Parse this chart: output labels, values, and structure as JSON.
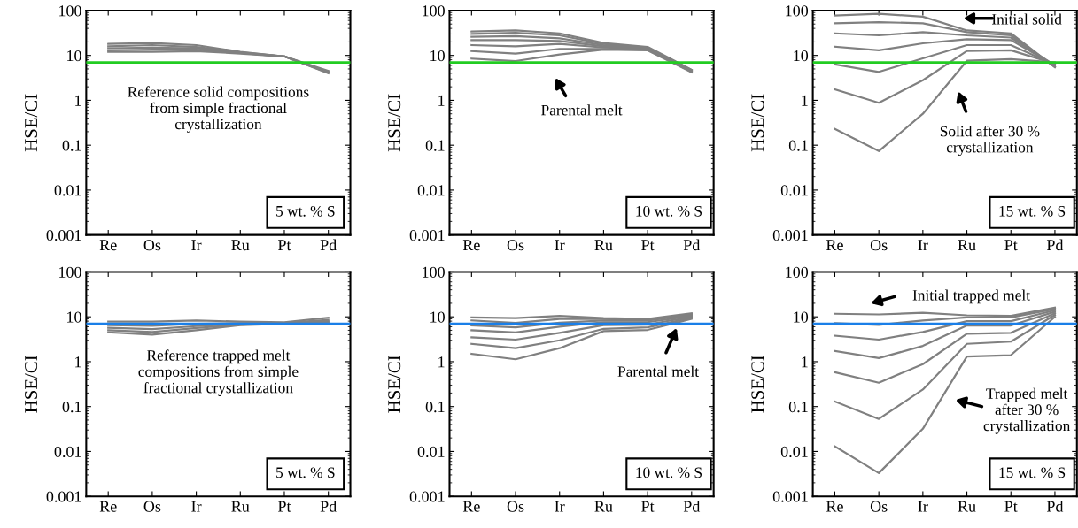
{
  "chart_data": [
    {
      "type": "line",
      "ylabel": "HSE/CI",
      "categories": [
        "Re",
        "Os",
        "Ir",
        "Ru",
        "Pt",
        "Pd"
      ],
      "log": true,
      "ylim": [
        0.001,
        100
      ],
      "yticks": [
        0.001,
        0.01,
        0.1,
        1,
        10,
        100
      ],
      "grid": false,
      "legend": false,
      "series": [
        {
          "color": "#808080",
          "values": [
            18,
            19,
            17,
            12,
            9.5,
            4.5
          ]
        },
        {
          "color": "#808080",
          "values": [
            16,
            17,
            15.5,
            11.8,
            9.5,
            4.3
          ]
        },
        {
          "color": "#808080",
          "values": [
            14.5,
            15,
            14.5,
            11.5,
            9.5,
            4.2
          ]
        },
        {
          "color": "#808080",
          "values": [
            13,
            13.5,
            13.5,
            11.3,
            9.5,
            4.1
          ]
        },
        {
          "color": "#808080",
          "values": [
            12,
            12,
            12.5,
            11,
            9.5,
            4.0
          ]
        }
      ],
      "ref_lines": [
        {
          "axis": "y",
          "value": 7,
          "color": "#22cc22"
        }
      ],
      "annotations": [
        "Reference solid compositions\nfrom simple fractional\ncrystallization",
        "5 wt. % S"
      ]
    },
    {
      "type": "line",
      "ylabel": "HSE/CI",
      "categories": [
        "Re",
        "Os",
        "Ir",
        "Ru",
        "Pt",
        "Pd"
      ],
      "log": true,
      "ylim": [
        0.001,
        100
      ],
      "yticks": [
        0.001,
        0.01,
        0.1,
        1,
        10,
        100
      ],
      "grid": false,
      "legend": false,
      "series": [
        {
          "color": "#808080",
          "values": [
            34,
            36,
            31,
            19,
            15.5,
            4.8
          ]
        },
        {
          "color": "#808080",
          "values": [
            30,
            32,
            28,
            18,
            15,
            4.7
          ]
        },
        {
          "color": "#808080",
          "values": [
            26,
            27,
            24,
            17,
            14.5,
            4.6
          ]
        },
        {
          "color": "#808080",
          "values": [
            22,
            22,
            21,
            16,
            14,
            4.5
          ]
        },
        {
          "color": "#808080",
          "values": [
            17,
            16,
            18,
            15,
            14,
            4.4
          ]
        },
        {
          "color": "#808080",
          "values": [
            12.5,
            11,
            14,
            14,
            13.5,
            4.3
          ]
        },
        {
          "color": "#808080",
          "values": [
            8.5,
            7.5,
            10.5,
            13.5,
            13,
            4.2
          ]
        }
      ],
      "ref_lines": [
        {
          "axis": "y",
          "value": 7,
          "color": "#22cc22"
        }
      ],
      "annotations": [
        "Parental melt",
        "10 wt. % S"
      ]
    },
    {
      "type": "line",
      "ylabel": "HSE/CI",
      "categories": [
        "Re",
        "Os",
        "Ir",
        "Ru",
        "Pt",
        "Pd"
      ],
      "log": true,
      "ylim": [
        0.001,
        100
      ],
      "yticks": [
        0.001,
        0.01,
        0.1,
        1,
        10,
        100
      ],
      "grid": false,
      "legend": false,
      "series": [
        {
          "color": "#808080",
          "values": [
            77,
            85,
            73,
            36,
            31,
            5.5
          ]
        },
        {
          "color": "#808080",
          "values": [
            52,
            55,
            52,
            33,
            28,
            5.5
          ]
        },
        {
          "color": "#808080",
          "values": [
            31,
            28,
            33,
            28,
            25,
            6
          ]
        },
        {
          "color": "#808080",
          "values": [
            15.7,
            13,
            18.6,
            23,
            22,
            6
          ]
        },
        {
          "color": "#808080",
          "values": [
            6.3,
            4.3,
            8.6,
            17,
            17,
            6.2
          ]
        },
        {
          "color": "#808080",
          "values": [
            1.75,
            0.88,
            2.8,
            12.6,
            13,
            6.5
          ]
        },
        {
          "color": "#808080",
          "values": [
            0.23,
            0.074,
            0.5,
            7.6,
            8.3,
            7
          ]
        }
      ],
      "ref_lines": [
        {
          "axis": "y",
          "value": 7,
          "color": "#22cc22"
        }
      ],
      "annotations": [
        "Initial solid",
        "Solid after 30 %\ncrystallization",
        "15 wt. % S"
      ]
    },
    {
      "type": "line",
      "ylabel": "HSE/CI",
      "categories": [
        "Re",
        "Os",
        "Ir",
        "Ru",
        "Pt",
        "Pd"
      ],
      "log": true,
      "ylim": [
        0.001,
        100
      ],
      "yticks": [
        0.001,
        0.01,
        0.1,
        1,
        10,
        100
      ],
      "grid": false,
      "legend": false,
      "series": [
        {
          "color": "#808080",
          "values": [
            7.8,
            7.8,
            8.3,
            7.8,
            7.6,
            9.5
          ]
        },
        {
          "color": "#808080",
          "values": [
            6.5,
            6.3,
            7,
            7.2,
            7.3,
            8.5
          ]
        },
        {
          "color": "#808080",
          "values": [
            5.7,
            5.3,
            6.2,
            6.9,
            7.2,
            8
          ]
        },
        {
          "color": "#808080",
          "values": [
            5.0,
            4.6,
            5.6,
            6.7,
            7.1,
            7.6
          ]
        },
        {
          "color": "#808080",
          "values": [
            4.5,
            4.0,
            5.0,
            6.5,
            7.0,
            7.3
          ]
        }
      ],
      "ref_lines": [
        {
          "axis": "y",
          "value": 7,
          "color": "#1a7fe8"
        }
      ],
      "annotations": [
        "Reference trapped melt\ncompositions from simple\nfractional crystallization",
        "5 wt. % S"
      ]
    },
    {
      "type": "line",
      "ylabel": "HSE/CI",
      "categories": [
        "Re",
        "Os",
        "Ir",
        "Ru",
        "Pt",
        "Pd"
      ],
      "log": true,
      "ylim": [
        0.001,
        100
      ],
      "yticks": [
        0.001,
        0.01,
        0.1,
        1,
        10,
        100
      ],
      "grid": false,
      "legend": false,
      "series": [
        {
          "color": "#808080",
          "values": [
            9.7,
            9.4,
            10.5,
            9.4,
            9,
            12
          ]
        },
        {
          "color": "#808080",
          "values": [
            8.3,
            7.3,
            9,
            9,
            8.5,
            11.5
          ]
        },
        {
          "color": "#808080",
          "values": [
            6.4,
            5.8,
            7.4,
            8.3,
            8.3,
            11
          ]
        },
        {
          "color": "#808080",
          "values": [
            5,
            4.5,
            6,
            7.6,
            7.6,
            10.5
          ]
        },
        {
          "color": "#808080",
          "values": [
            3.5,
            3.1,
            4.4,
            6.5,
            6.7,
            10
          ]
        },
        {
          "color": "#808080",
          "values": [
            2.5,
            2.0,
            3,
            5.4,
            5.8,
            9.5
          ]
        },
        {
          "color": "#808080",
          "values": [
            1.5,
            1.13,
            2,
            4.8,
            5.1,
            9
          ]
        }
      ],
      "ref_lines": [
        {
          "axis": "y",
          "value": 7,
          "color": "#1a7fe8"
        }
      ],
      "annotations": [
        "Parental melt",
        "10 wt. % S"
      ]
    },
    {
      "type": "line",
      "ylabel": "HSE/CI",
      "categories": [
        "Re",
        "Os",
        "Ir",
        "Ru",
        "Pt",
        "Pd"
      ],
      "log": true,
      "ylim": [
        0.001,
        100
      ],
      "yticks": [
        0.001,
        0.01,
        0.1,
        1,
        10,
        100
      ],
      "grid": false,
      "legend": false,
      "series": [
        {
          "color": "#808080",
          "values": [
            11.7,
            11.3,
            12.3,
            10.8,
            10.5,
            16
          ]
        },
        {
          "color": "#808080",
          "values": [
            7.2,
            6.6,
            8.3,
            9.7,
            9.7,
            15
          ]
        },
        {
          "color": "#808080",
          "values": [
            3.8,
            3.1,
            4.6,
            8,
            8,
            14
          ]
        },
        {
          "color": "#808080",
          "values": [
            1.73,
            1.2,
            2.25,
            6.4,
            6.4,
            13
          ]
        },
        {
          "color": "#808080",
          "values": [
            0.58,
            0.34,
            0.88,
            4.2,
            4.4,
            12
          ]
        },
        {
          "color": "#808080",
          "values": [
            0.13,
            0.053,
            0.24,
            2.5,
            2.8,
            11
          ]
        },
        {
          "color": "#808080",
          "values": [
            0.013,
            0.0033,
            0.032,
            1.3,
            1.4,
            10
          ]
        }
      ],
      "ref_lines": [
        {
          "axis": "y",
          "value": 7,
          "color": "#1a7fe8"
        }
      ],
      "annotations": [
        "Initial trapped melt",
        "Trapped melt\nafter 30 %\ncrystallization",
        "15 wt. % S"
      ]
    }
  ]
}
